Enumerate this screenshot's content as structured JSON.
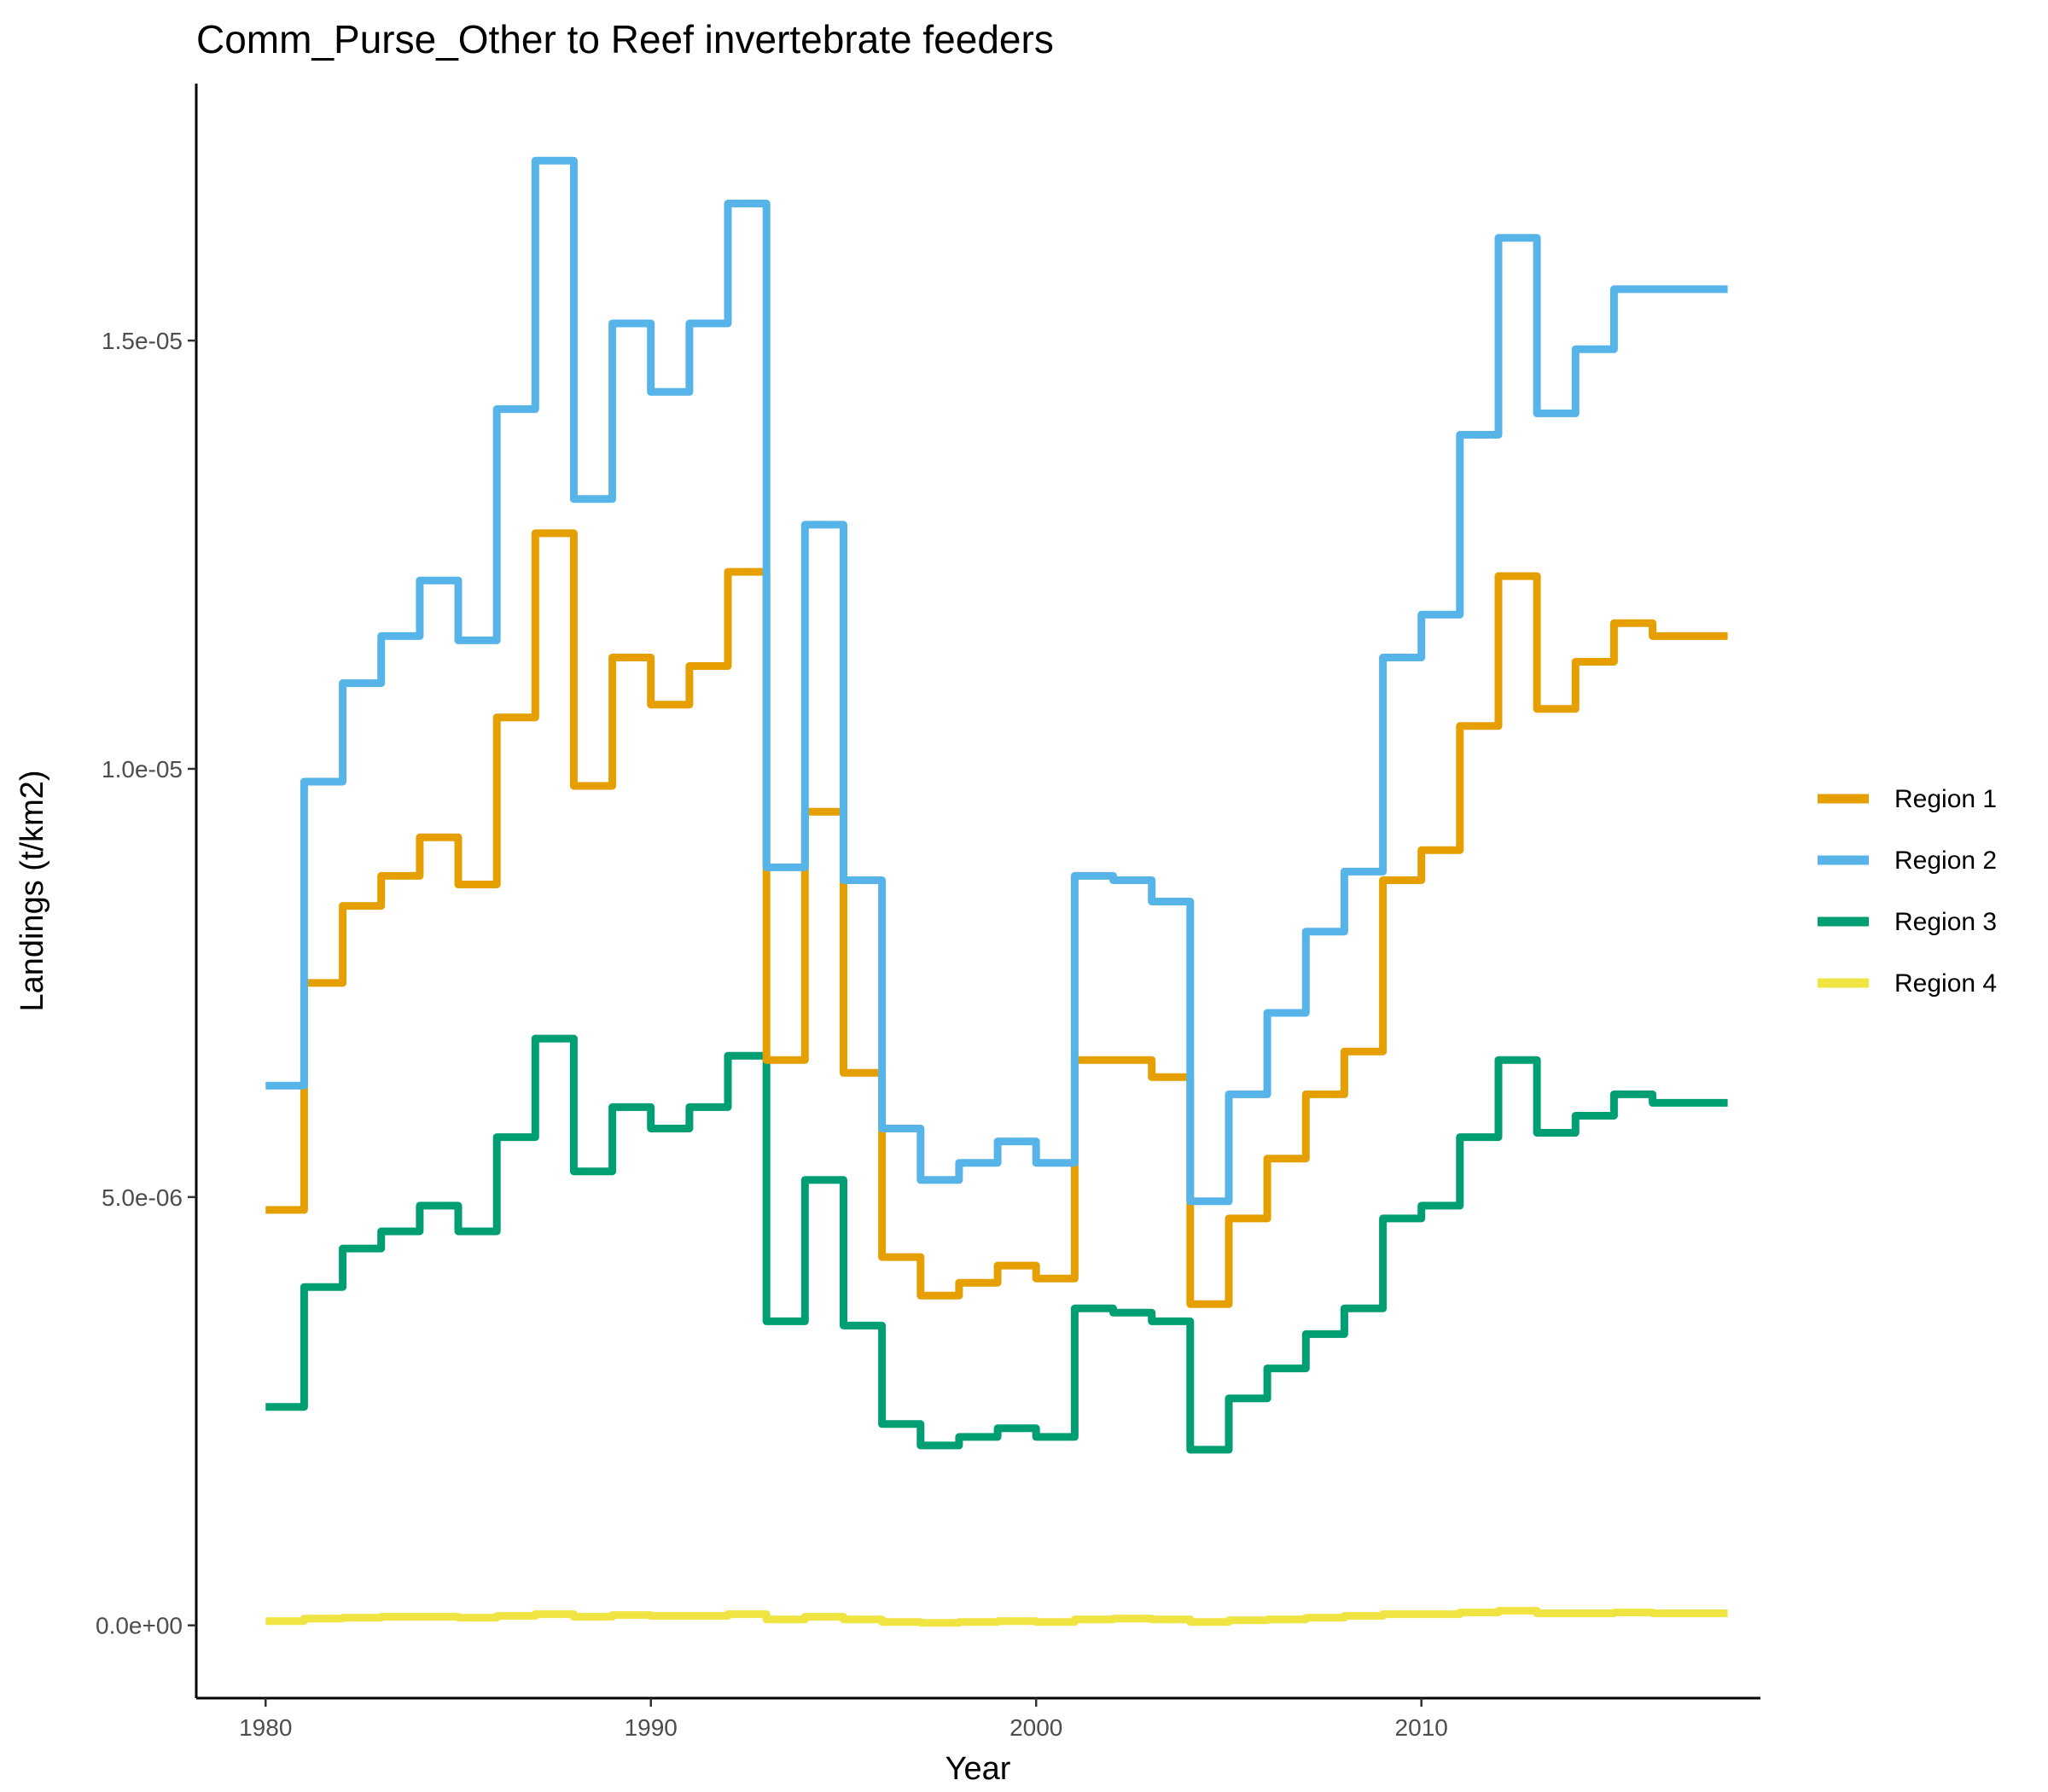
{
  "chart_data": {
    "type": "line",
    "title": "Comm_Purse_Other to Reef invertebrate feeders",
    "xlabel": "Year",
    "ylabel": "Landings (t/km2)",
    "xlim": [
      1978.2,
      2018.8
    ],
    "ylim": [
      -8.5e-07,
      1.8e-05
    ],
    "x_ticks": [
      1980,
      1990,
      2000,
      2010
    ],
    "x_tick_labels": [
      "1980",
      "1990",
      "2000",
      "2010"
    ],
    "y_ticks": [
      0,
      5e-06,
      1e-05,
      1.5e-05
    ],
    "y_tick_labels": [
      "0.0e+00",
      "5.0e-06",
      "1.0e-05",
      "1.5e-05"
    ],
    "grid": false,
    "legend_position": "right",
    "colors": {
      "Region 1": "#E69F00",
      "Region 2": "#56B4E9",
      "Region 3": "#009E73",
      "Region 4": "#F0E442"
    },
    "x": [
      1980,
      1981,
      1982,
      1983,
      1984,
      1985,
      1986,
      1987,
      1988,
      1989,
      1990,
      1991,
      1992,
      1993,
      1994,
      1995,
      1996,
      1997,
      1998,
      1999,
      2000,
      2001,
      2002,
      2003,
      2004,
      2005,
      2006,
      2007,
      2008,
      2009,
      2010,
      2011,
      2012,
      2013,
      2014,
      2015,
      2016,
      2017
    ],
    "series": [
      {
        "name": "Region 1",
        "values": [
          4.85e-06,
          7.5e-06,
          8.4e-06,
          8.75e-06,
          9.2e-06,
          8.65e-06,
          1.06e-05,
          1.275e-05,
          9.8e-06,
          1.13e-05,
          1.075e-05,
          1.12e-05,
          1.23e-05,
          6.6e-06,
          9.5e-06,
          6.45e-06,
          4.3e-06,
          3.85e-06,
          4e-06,
          4.2e-06,
          4.05e-06,
          6.6e-06,
          6.6e-06,
          6.4e-06,
          3.75e-06,
          4.75e-06,
          5.45e-06,
          6.2e-06,
          6.7e-06,
          8.7e-06,
          9.05e-06,
          1.05e-05,
          1.225e-05,
          1.07e-05,
          1.125e-05,
          1.17e-05,
          1.155e-05,
          1.155e-05
        ]
      },
      {
        "name": "Region 2",
        "values": [
          6.3e-06,
          9.85e-06,
          1.1e-05,
          1.155e-05,
          1.22e-05,
          1.15e-05,
          1.42e-05,
          1.71e-05,
          1.315e-05,
          1.52e-05,
          1.44e-05,
          1.52e-05,
          1.66e-05,
          8.85e-06,
          1.285e-05,
          8.7e-06,
          5.8e-06,
          5.2e-06,
          5.4e-06,
          5.65e-06,
          5.4e-06,
          8.75e-06,
          8.7e-06,
          8.45e-06,
          4.95e-06,
          6.2e-06,
          7.15e-06,
          8.1e-06,
          8.8e-06,
          1.13e-05,
          1.18e-05,
          1.39e-05,
          1.62e-05,
          1.415e-05,
          1.49e-05,
          1.56e-05,
          1.56e-05,
          1.56e-05
        ]
      },
      {
        "name": "Region 3",
        "values": [
          2.55e-06,
          3.95e-06,
          4.4e-06,
          4.6e-06,
          4.9e-06,
          4.6e-06,
          5.7e-06,
          6.85e-06,
          5.3e-06,
          6.05e-06,
          5.8e-06,
          6.05e-06,
          6.65e-06,
          3.55e-06,
          5.2e-06,
          3.5e-06,
          2.35e-06,
          2.1e-06,
          2.2e-06,
          2.3e-06,
          2.2e-06,
          3.7e-06,
          3.65e-06,
          3.55e-06,
          2.05e-06,
          2.65e-06,
          3e-06,
          3.4e-06,
          3.7e-06,
          4.75e-06,
          4.9e-06,
          5.7e-06,
          6.6e-06,
          5.75e-06,
          5.95e-06,
          6.2e-06,
          6.1e-06,
          6.1e-06
        ]
      },
      {
        "name": "Region 4",
        "values": [
          5e-08,
          8e-08,
          9e-08,
          1e-07,
          1e-07,
          9e-08,
          1.1e-07,
          1.3e-07,
          1e-07,
          1.2e-07,
          1.1e-07,
          1.1e-07,
          1.3e-07,
          7e-08,
          1e-07,
          7e-08,
          4e-08,
          3e-08,
          4e-08,
          5e-08,
          4e-08,
          7e-08,
          8e-08,
          7e-08,
          4e-08,
          6e-08,
          7e-08,
          9e-08,
          1.1e-07,
          1.3e-07,
          1.3e-07,
          1.5e-07,
          1.7e-07,
          1.4e-07,
          1.4e-07,
          1.5e-07,
          1.4e-07,
          1.4e-07
        ]
      }
    ]
  }
}
